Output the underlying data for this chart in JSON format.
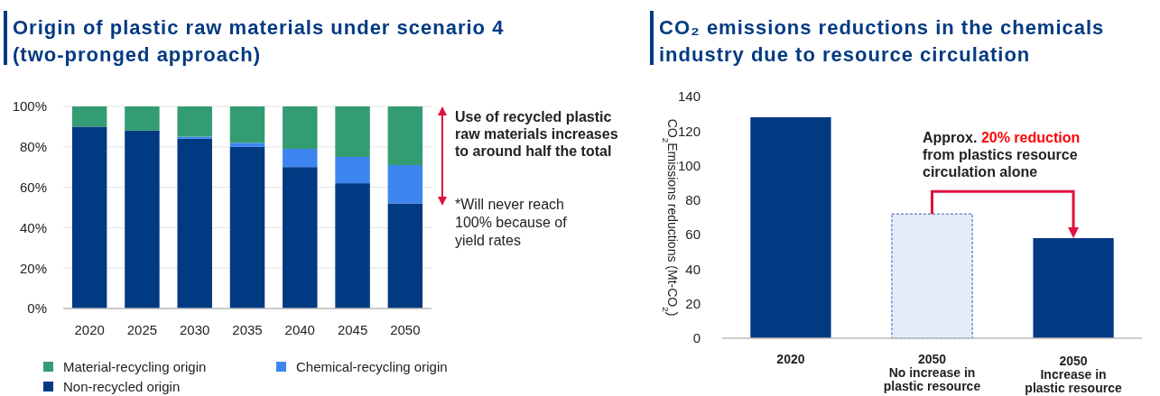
{
  "chart_data": [
    {
      "type": "bar",
      "title": "Origin of plastic raw materials under scenario 4\n(two-pronged approach)",
      "categories": [
        "2020",
        "2025",
        "2030",
        "2035",
        "2040",
        "2045",
        "2050"
      ],
      "stacked": true,
      "series": [
        {
          "name": "Non-recycled origin",
          "color": "#003a82",
          "values": [
            90,
            88,
            84,
            80,
            70,
            62,
            52
          ]
        },
        {
          "name": "Chemical-recycling origin",
          "color": "#3d85f0",
          "values": [
            0,
            0,
            1,
            2,
            9,
            13,
            19
          ]
        },
        {
          "name": "Material-recycling origin",
          "color": "#349c72",
          "values": [
            10,
            12,
            15,
            18,
            21,
            25,
            29
          ]
        }
      ],
      "ylim": [
        0,
        100
      ],
      "yticks": [
        {
          "value": 0,
          "label": "0%"
        },
        {
          "value": 20,
          "label": "20%"
        },
        {
          "value": 40,
          "label": "40%"
        },
        {
          "value": 60,
          "label": "60%"
        },
        {
          "value": 80,
          "label": "80%"
        },
        {
          "value": 100,
          "label": "100%"
        }
      ],
      "grid": "y",
      "legend": "bottom",
      "annotations": [
        "Use of recycled plastic raw materials increases to around half the total",
        "*Will never reach 100% because of yield rates"
      ]
    },
    {
      "type": "bar",
      "title": "CO₂ emissions reductions in the chemicals\nindustry due to resource circulation",
      "ylabel": "CO$_{2}$Emissions reductions (Mt-CO$_{2}$)",
      "categories": [
        "2020",
        "2050\nNo increase in\nplastic resource",
        "2050\nIncrease in\nplastic resource"
      ],
      "values": [
        128,
        72,
        58
      ],
      "colors": [
        "#003a82",
        "#e3ecfb",
        "#003a82"
      ],
      "ylim": [
        0,
        140
      ],
      "yticks": [
        0,
        20,
        40,
        60,
        80,
        100,
        120,
        140
      ],
      "annotations": [
        "Approx.",
        "20% reduction",
        "from plastics resource circulation alone"
      ]
    }
  ]
}
